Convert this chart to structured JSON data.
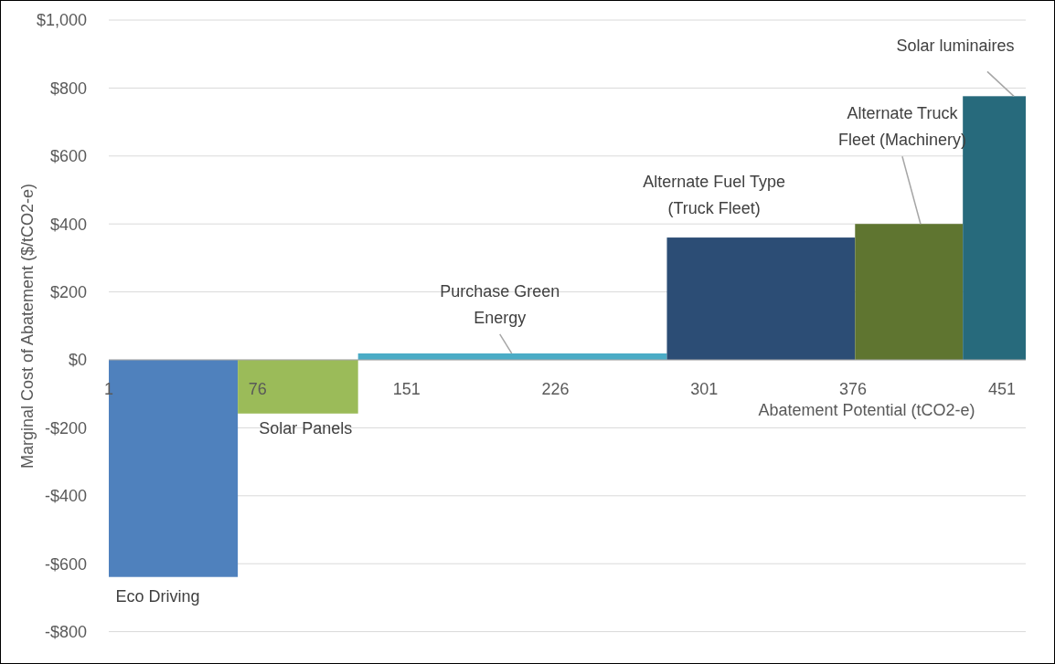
{
  "chart_data": {
    "type": "histogram",
    "bins": [
      1,
      66,
      126.6,
      282.2,
      377,
      431.3,
      463
    ],
    "values": [
      -639,
      -158,
      19,
      360,
      400,
      776
    ],
    "colors": [
      "#4f81bd",
      "#9bbb59",
      "#4bacc6",
      "#2c4d75",
      "#5f7530",
      "#276a7c"
    ],
    "xlabel": "Abatement Potential (tCO2-e)",
    "ylabel": "Marginal Cost of Abatement ($/tCO2-e)",
    "xlim": [
      1,
      463
    ],
    "xticks": [
      1,
      76,
      151,
      226,
      301,
      376,
      451
    ],
    "ylim": [
      -890,
      1000
    ],
    "yticks": [
      {
        "value": -800,
        "label": "-$800"
      },
      {
        "value": -600,
        "label": "-$600"
      },
      {
        "value": -400,
        "label": "-$400"
      },
      {
        "value": -200,
        "label": "-$200"
      },
      {
        "value": 0,
        "label": "$0"
      },
      {
        "value": 200,
        "label": "$200"
      },
      {
        "value": 400,
        "label": "$400"
      },
      {
        "value": 600,
        "label": "$600"
      },
      {
        "value": 800,
        "label": "$800"
      },
      {
        "value": 1000,
        "label": "$1,000"
      }
    ],
    "grid": "y",
    "annotations": [
      {
        "text": "Eco Driving",
        "x": 33,
        "y": -639
      },
      {
        "text": "Solar Panels",
        "x": 96,
        "y": -158
      },
      {
        "text": "Purchase Green Energy",
        "x": 204,
        "y": 19
      },
      {
        "text": "Alternate Fuel Type (Truck Fleet)",
        "x": 329,
        "y": 360
      },
      {
        "text": "Alternate Truck Fleet (Machinery)",
        "x": 410,
        "y": 400
      },
      {
        "text": "Solar luminaires",
        "x": 457,
        "y": 776
      }
    ]
  }
}
